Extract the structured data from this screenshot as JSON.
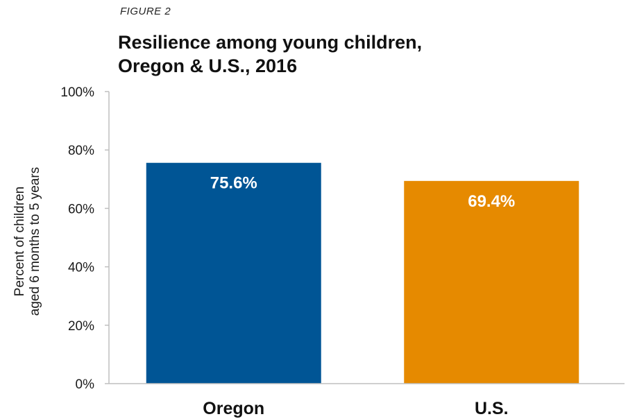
{
  "figure_label": "FIGURE 2",
  "chart_data": {
    "type": "bar",
    "title": [
      "Resilience among young children,",
      "Oregon & U.S., 2016"
    ],
    "ylabel": [
      "Percent of children",
      "aged 6 months to 5 years"
    ],
    "xlabel": "",
    "categories": [
      "Oregon",
      "U.S."
    ],
    "values": [
      75.6,
      69.4
    ],
    "data_labels": [
      "75.6%",
      "69.4%"
    ],
    "colors": [
      "#005595",
      "#e68a00"
    ],
    "ylim": [
      0,
      100
    ],
    "yticks": [
      0,
      20,
      40,
      60,
      80,
      100
    ],
    "ytick_labels": [
      "0%",
      "20%",
      "40%",
      "60%",
      "80%",
      "100%"
    ],
    "grid": false,
    "legend": "none"
  }
}
